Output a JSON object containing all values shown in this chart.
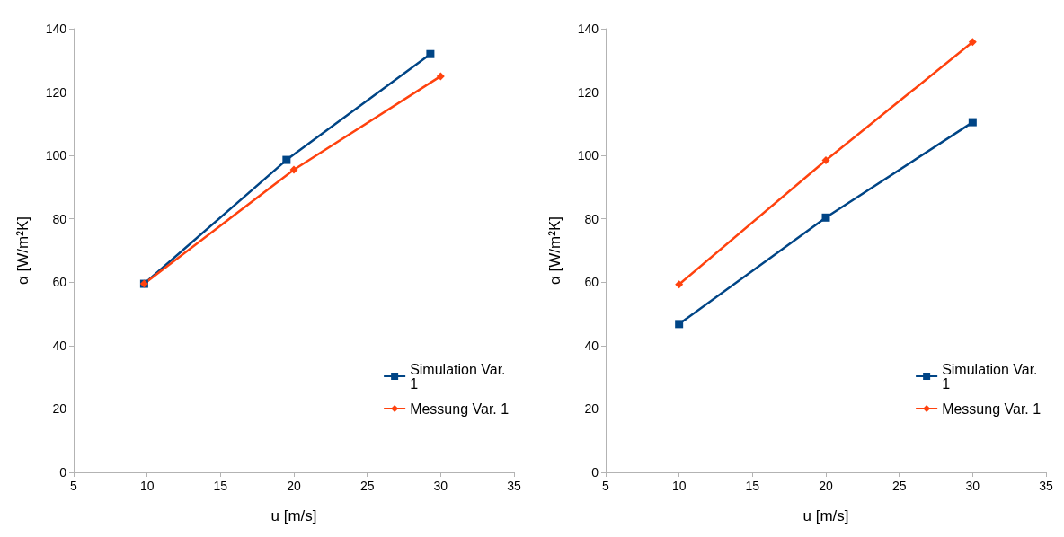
{
  "chart_data": [
    {
      "type": "line",
      "xlabel": "u [m/s]",
      "ylabel": "α [W/m²K]",
      "xlim": [
        5,
        35
      ],
      "xticks": [
        5,
        10,
        15,
        20,
        25,
        30,
        35
      ],
      "ylim": [
        0,
        140
      ],
      "yticks": [
        0,
        20,
        40,
        60,
        80,
        100,
        120,
        140
      ],
      "grid": false,
      "legend": "bottom right",
      "line_style": "solid",
      "series": [
        {
          "name": "Simulation Var. 1",
          "color": "#004586",
          "marker": "square",
          "x": [
            9.8,
            19.5,
            29.3
          ],
          "values": [
            59.5,
            98.6,
            132
          ]
        },
        {
          "name": "Messung Var. 1",
          "color": "#ff420e",
          "marker": "diamond",
          "x": [
            9.8,
            20,
            30
          ],
          "values": [
            59.5,
            95.5,
            125
          ]
        }
      ]
    },
    {
      "type": "line",
      "xlabel": "u [m/s]",
      "ylabel": "α [W/m²K]",
      "xlim": [
        5,
        35
      ],
      "xticks": [
        5,
        10,
        15,
        20,
        25,
        30,
        35
      ],
      "ylim": [
        0,
        140
      ],
      "yticks": [
        0,
        20,
        40,
        60,
        80,
        100,
        120,
        140
      ],
      "grid": false,
      "legend": "bottom right",
      "line_style": "solid",
      "series": [
        {
          "name": "Simulation Var. 1",
          "color": "#004586",
          "marker": "square",
          "x": [
            10,
            20,
            30
          ],
          "values": [
            46.8,
            80.4,
            110.5
          ]
        },
        {
          "name": "Messung Var. 1",
          "color": "#ff420e",
          "marker": "diamond",
          "x": [
            10,
            20,
            30
          ],
          "values": [
            59.3,
            98.5,
            135.8
          ]
        }
      ]
    }
  ]
}
